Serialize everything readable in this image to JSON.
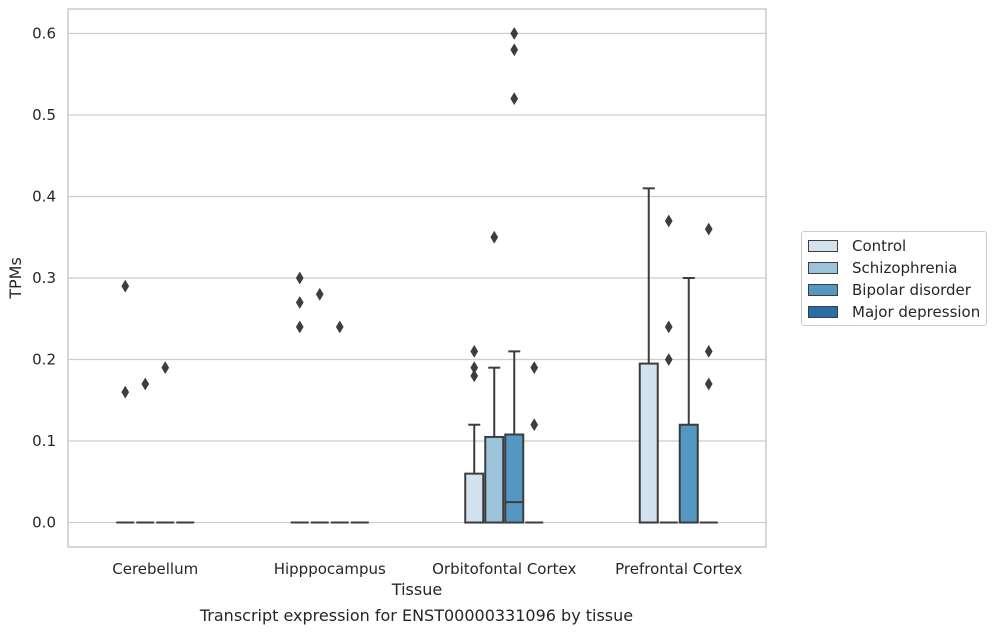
{
  "chart_data": {
    "type": "box",
    "title": "",
    "caption": "Transcript expression for ENST00000331096 by tissue",
    "xlabel": "Tissue",
    "ylabel": "TPMs",
    "ylim": [
      -0.03,
      0.63
    ],
    "yticks": [
      0.0,
      0.1,
      0.2,
      0.3,
      0.4,
      0.5,
      0.6
    ],
    "ytick_labels": [
      "0.0",
      "0.1",
      "0.2",
      "0.3",
      "0.4",
      "0.5",
      "0.6"
    ],
    "grid": "horizontal",
    "legend_position": "right",
    "categories": [
      "Cerebellum",
      "Hipppocampus",
      "Orbitofontal Cortex",
      "Prefrontal Cortex"
    ],
    "series": [
      {
        "name": "Control",
        "color": "#d3e2ef",
        "boxes": [
          {
            "q1": 0,
            "median": 0,
            "q3": 0,
            "whisker_low": 0,
            "whisker_high": 0,
            "outliers": [
              0.29,
              0.16
            ]
          },
          {
            "q1": 0,
            "median": 0,
            "q3": 0,
            "whisker_low": 0,
            "whisker_high": 0,
            "outliers": [
              0.3,
              0.27,
              0.24
            ]
          },
          {
            "q1": 0,
            "median": 0,
            "q3": 0.06,
            "whisker_low": 0,
            "whisker_high": 0.12,
            "outliers": [
              0.21,
              0.19,
              0.18
            ]
          },
          {
            "q1": 0,
            "median": 0,
            "q3": 0.195,
            "whisker_low": 0,
            "whisker_high": 0.41,
            "outliers": []
          }
        ]
      },
      {
        "name": "Schizophrenia",
        "color": "#9cc3da",
        "boxes": [
          {
            "q1": 0,
            "median": 0,
            "q3": 0,
            "whisker_low": 0,
            "whisker_high": 0,
            "outliers": [
              0.17
            ]
          },
          {
            "q1": 0,
            "median": 0,
            "q3": 0,
            "whisker_low": 0,
            "whisker_high": 0,
            "outliers": [
              0.28
            ]
          },
          {
            "q1": 0,
            "median": 0,
            "q3": 0.105,
            "whisker_low": 0,
            "whisker_high": 0.19,
            "outliers": [
              0.35
            ]
          },
          {
            "q1": 0,
            "median": 0,
            "q3": 0,
            "whisker_low": 0,
            "whisker_high": 0,
            "outliers": [
              0.37,
              0.24,
              0.2
            ]
          }
        ]
      },
      {
        "name": "Bipolar disorder",
        "color": "#5597c3",
        "boxes": [
          {
            "q1": 0,
            "median": 0,
            "q3": 0,
            "whisker_low": 0,
            "whisker_high": 0,
            "outliers": [
              0.19
            ]
          },
          {
            "q1": 0,
            "median": 0,
            "q3": 0,
            "whisker_low": 0,
            "whisker_high": 0,
            "outliers": [
              0.24
            ]
          },
          {
            "q1": 0,
            "median": 0.025,
            "q3": 0.108,
            "whisker_low": 0,
            "whisker_high": 0.21,
            "outliers": [
              0.58,
              0.52,
              0.6
            ]
          },
          {
            "q1": 0,
            "median": 0,
            "q3": 0.12,
            "whisker_low": 0,
            "whisker_high": 0.3,
            "outliers": []
          }
        ]
      },
      {
        "name": "Major depression",
        "color": "#2a6ea8",
        "boxes": [
          {
            "q1": 0,
            "median": 0,
            "q3": 0,
            "whisker_low": 0,
            "whisker_high": 0,
            "outliers": []
          },
          {
            "q1": 0,
            "median": 0,
            "q3": 0,
            "whisker_low": 0,
            "whisker_high": 0,
            "outliers": []
          },
          {
            "q1": 0,
            "median": 0,
            "q3": 0,
            "whisker_low": 0,
            "whisker_high": 0,
            "outliers": [
              0.19,
              0.12
            ]
          },
          {
            "q1": 0,
            "median": 0,
            "q3": 0,
            "whisker_low": 0,
            "whisker_high": 0,
            "outliers": [
              0.36,
              0.21,
              0.17
            ]
          }
        ]
      }
    ]
  }
}
